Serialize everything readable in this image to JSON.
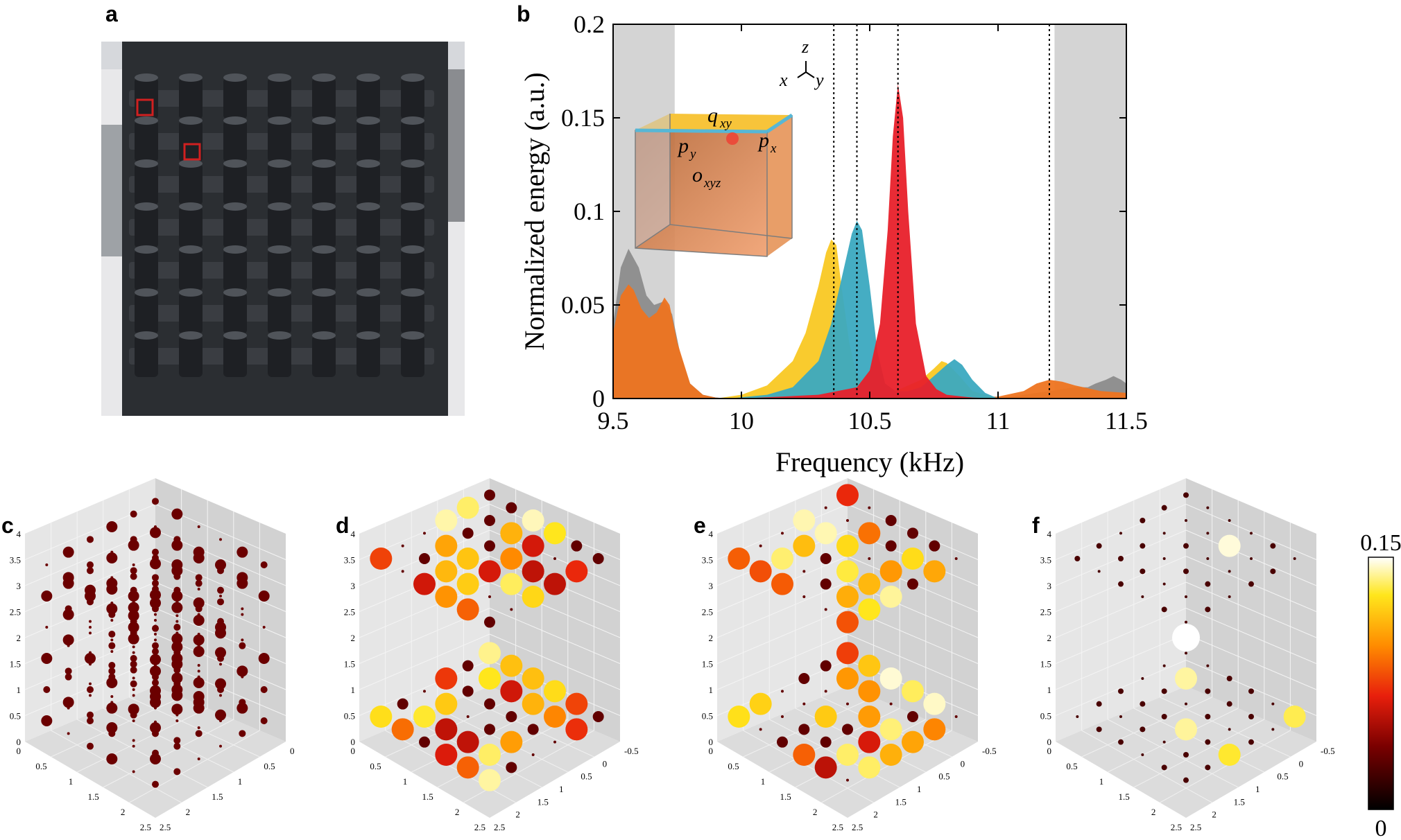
{
  "labels": {
    "a": "a",
    "b": "b",
    "c": "c",
    "d": "d",
    "e": "e",
    "f": "f"
  },
  "chart_data": {
    "type": "area",
    "title": "",
    "xlabel": "Frequency (kHz)",
    "ylabel": "Normalized  energy (a.u.)",
    "xlim": [
      9.5,
      11.5
    ],
    "ylim": [
      0,
      0.2
    ],
    "xticks": [
      "9.5",
      "10",
      "10.5",
      "11",
      "11.5"
    ],
    "yticks": [
      "0",
      "0.05",
      "0.1",
      "0.15",
      "0.2"
    ],
    "xtick_values": [
      9.5,
      10,
      10.5,
      11,
      11.5
    ],
    "ytick_values": [
      0,
      0.05,
      0.1,
      0.15,
      0.2
    ],
    "shaded_regions": [
      [
        9.5,
        9.74
      ],
      [
        11.22,
        11.5
      ]
    ],
    "dotted_lines": [
      10.36,
      10.45,
      10.61,
      11.2
    ],
    "series": [
      {
        "name": "gray",
        "color": "#8c8c8c",
        "x": [
          9.5,
          9.53,
          9.56,
          9.6,
          9.63,
          9.66,
          9.7,
          9.73,
          9.76,
          9.8,
          9.85,
          9.9,
          9.95,
          10,
          11,
          11.2,
          11.3,
          11.35,
          11.38,
          11.42,
          11.45,
          11.48,
          11.5
        ],
        "y": [
          0.04,
          0.07,
          0.08,
          0.07,
          0.055,
          0.05,
          0.052,
          0.045,
          0.025,
          0.008,
          0.002,
          0.0005,
          0,
          0,
          0,
          0.004,
          0.006,
          0.006,
          0.008,
          0.01,
          0.012,
          0.01,
          0.008
        ]
      },
      {
        "name": "orange",
        "color": "#ee7420",
        "x": [
          9.5,
          9.53,
          9.56,
          9.58,
          9.61,
          9.64,
          9.67,
          9.7,
          9.72,
          9.75,
          9.8,
          9.85,
          9.9,
          9.95,
          10.0,
          10.5,
          11.0,
          11.1,
          11.15,
          11.2,
          11.25,
          11.3,
          11.4,
          11.5
        ],
        "y": [
          0.035,
          0.055,
          0.061,
          0.058,
          0.048,
          0.043,
          0.046,
          0.054,
          0.05,
          0.03,
          0.008,
          0.002,
          0.0005,
          0,
          0,
          0,
          0.001,
          0.004,
          0.008,
          0.01,
          0.009,
          0.007,
          0.004,
          0.003
        ]
      },
      {
        "name": "yellow",
        "color": "#f9c823",
        "x": [
          9.9,
          10.0,
          10.1,
          10.2,
          10.25,
          10.3,
          10.33,
          10.35,
          10.37,
          10.39,
          10.42,
          10.45,
          10.5,
          10.55,
          10.6,
          10.7,
          10.75,
          10.78,
          10.8,
          10.85,
          10.9,
          11.0
        ],
        "y": [
          0,
          0.002,
          0.007,
          0.02,
          0.035,
          0.06,
          0.078,
          0.085,
          0.082,
          0.06,
          0.03,
          0.012,
          0.005,
          0.003,
          0.004,
          0.01,
          0.016,
          0.02,
          0.019,
          0.012,
          0.004,
          0
        ]
      },
      {
        "name": "blue",
        "color": "#3ba9c0",
        "x": [
          9.95,
          10.1,
          10.2,
          10.3,
          10.35,
          10.4,
          10.43,
          10.45,
          10.47,
          10.5,
          10.53,
          10.56,
          10.6,
          10.65,
          10.7,
          10.75,
          10.8,
          10.83,
          10.86,
          10.9,
          10.95,
          11.0
        ],
        "y": [
          0,
          0.002,
          0.006,
          0.02,
          0.04,
          0.07,
          0.088,
          0.095,
          0.09,
          0.06,
          0.025,
          0.008,
          0.004,
          0.004,
          0.006,
          0.012,
          0.018,
          0.021,
          0.018,
          0.01,
          0.003,
          0
        ]
      },
      {
        "name": "red",
        "color": "#e8202a",
        "x": [
          10.0,
          10.3,
          10.45,
          10.5,
          10.54,
          10.57,
          10.59,
          10.61,
          10.63,
          10.65,
          10.68,
          10.72,
          10.76,
          10.8,
          10.9,
          11.0
        ],
        "y": [
          0,
          0.002,
          0.006,
          0.015,
          0.04,
          0.09,
          0.14,
          0.168,
          0.15,
          0.1,
          0.04,
          0.012,
          0.005,
          0.002,
          0.0005,
          0
        ]
      }
    ],
    "axes_glyph": {
      "z": "z",
      "x": "x",
      "y": "y"
    },
    "inset_labels": {
      "q": "q",
      "q_sub": "xy",
      "px": "p",
      "px_sub": "x",
      "py": "p",
      "py_sub": "y",
      "o": "o",
      "o_sub": "xyz"
    }
  },
  "panels3d": {
    "z_ticks": [
      "0",
      "0.5",
      "1",
      "1.5",
      "2",
      "2.5",
      "3",
      "3.5",
      "4"
    ],
    "left_ticks": [
      "0",
      "0.5",
      "1",
      "1.5",
      "2",
      "2.5"
    ],
    "right_ticks_c": [
      "0",
      "0.5",
      "1",
      "1.5",
      "2",
      "2.5"
    ],
    "right_ticks_d": [
      "-0.5",
      "0",
      "0.5",
      "1",
      "1.5",
      "2",
      "2.5"
    ]
  },
  "colorbar": {
    "max": "0.15",
    "min": "0"
  }
}
